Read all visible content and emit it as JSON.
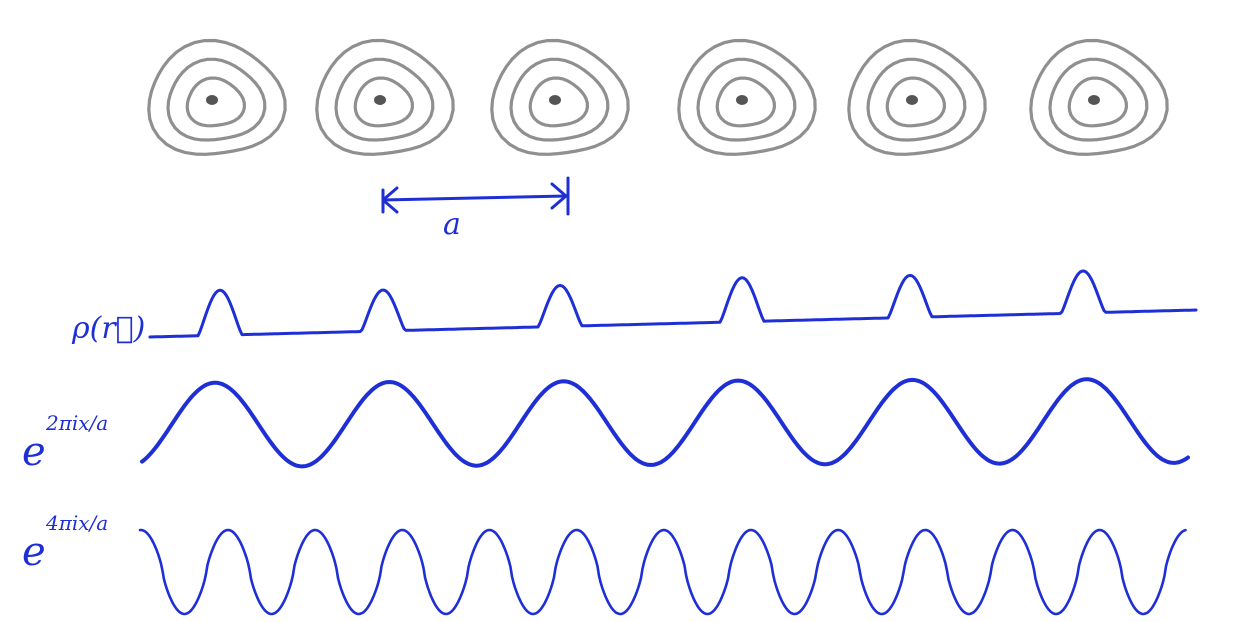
{
  "colors": {
    "ink": "#1f2fd6",
    "atom": "#8f8f8f",
    "core": "#555555",
    "background": "#ffffff"
  },
  "lattice": {
    "atom_count": 6
  },
  "labels": {
    "spacing": "a",
    "density": "ρ(r⃗)",
    "wave1_base": "e",
    "wave1_exponent": "2πix/a",
    "wave2_base": "e",
    "wave2_exponent": "4πix/a"
  },
  "waves": {
    "density_peaks": 6,
    "wave1_periods": 6,
    "wave2_periods": 12
  }
}
